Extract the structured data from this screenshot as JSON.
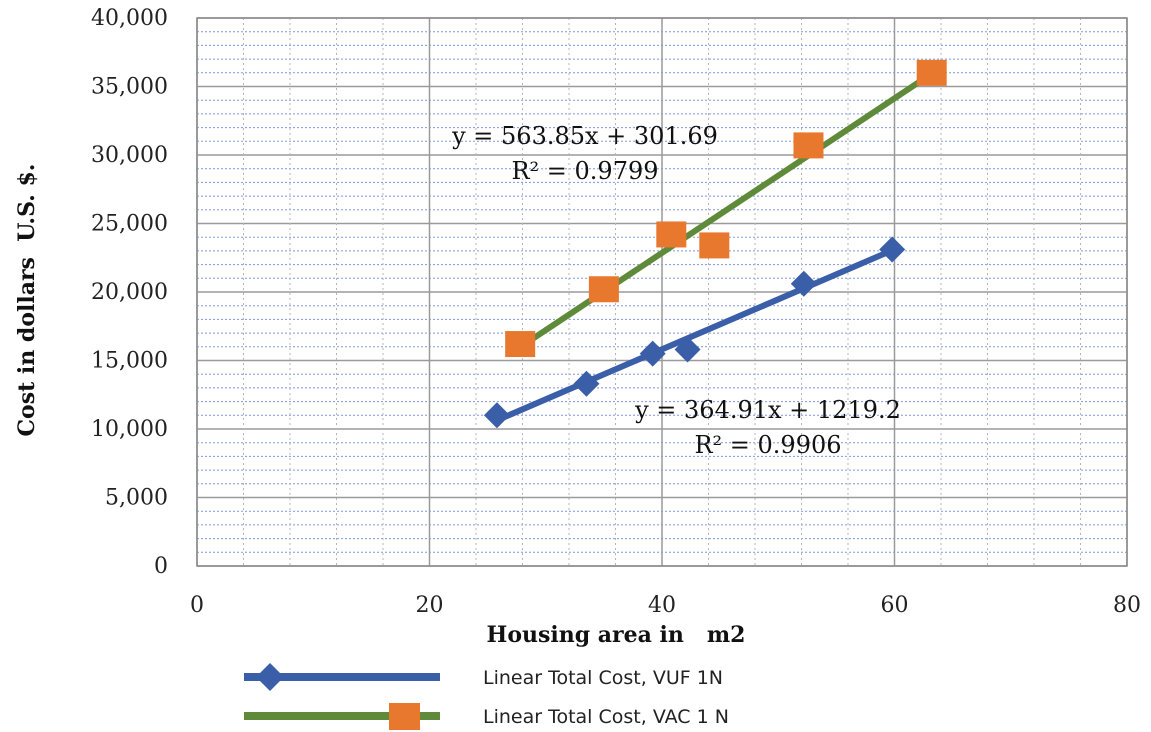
{
  "chart_data": {
    "type": "scatter",
    "xlabel": "Housing area in   m2",
    "ylabel": "Cost in dollars  U.S. $.",
    "xlim": [
      0,
      80
    ],
    "ylim": [
      0,
      40000
    ],
    "x_ticks": [
      0,
      20,
      40,
      60,
      80
    ],
    "y_ticks": [
      0,
      5000,
      10000,
      15000,
      20000,
      25000,
      30000,
      35000,
      40000
    ],
    "x_tick_labels": [
      "0",
      "20",
      "40",
      "60",
      "80"
    ],
    "y_tick_labels": [
      "0",
      "5,000",
      "10,000",
      "15,000",
      "20,000",
      "25,000",
      "30,000",
      "35,000",
      "40,000"
    ],
    "grid": true,
    "legend_position": "bottom",
    "series": [
      {
        "name": "Linear Total Cost, VUF 1N",
        "color": "#3a5ea8",
        "marker": "diamond",
        "points": [
          [
            25.8,
            11000
          ],
          [
            33.5,
            13300
          ],
          [
            39.2,
            15500
          ],
          [
            42.2,
            15800
          ],
          [
            52.2,
            20600
          ],
          [
            59.8,
            23100
          ]
        ],
        "trendline": {
          "slope": 364.91,
          "intercept": 1219.2,
          "x_range": [
            25.8,
            59.8
          ]
        },
        "equation": "y = 364.91x + 1219.2",
        "r2": "R² = 0.9906"
      },
      {
        "name": "Linear Total Cost, VAC 1 N",
        "color": "#e8782e",
        "line_color": "#5f8a3a",
        "marker": "square",
        "points": [
          [
            27.8,
            16200
          ],
          [
            35,
            20200
          ],
          [
            40.8,
            24200
          ],
          [
            44.5,
            23400
          ],
          [
            52.6,
            30700
          ],
          [
            63.2,
            36000
          ]
        ],
        "trendline": {
          "slope": 563.85,
          "intercept": 301.69,
          "x_range": [
            27.8,
            63.2
          ]
        },
        "equation": "y = 563.85x + 301.69",
        "r2": "R² = 0.9799"
      }
    ]
  }
}
